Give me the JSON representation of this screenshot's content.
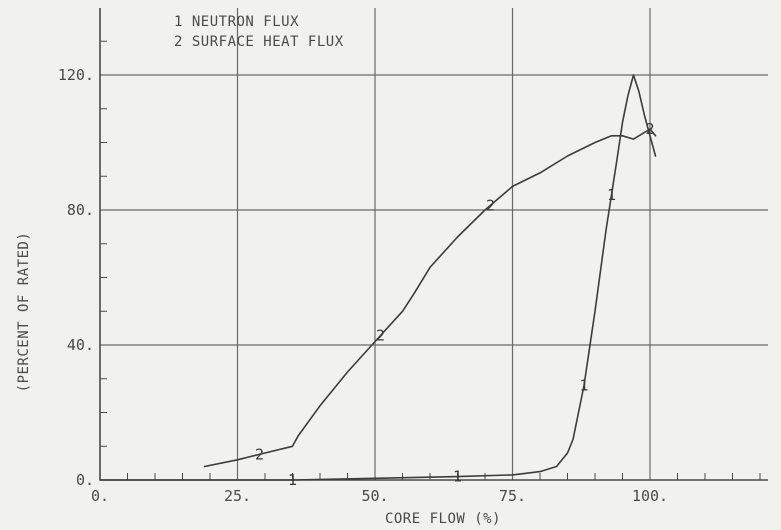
{
  "chart_data": {
    "type": "line",
    "xlabel": "CORE FLOW (%)",
    "ylabel": "(PERCENT OF RATED)",
    "xlim": [
      0,
      125
    ],
    "ylim": [
      0,
      140
    ],
    "xticks": [
      0,
      25,
      50,
      75,
      100
    ],
    "xtick_labels": [
      "0.",
      "25.",
      "50.",
      "75.",
      "100."
    ],
    "yticks": [
      0,
      40,
      80,
      120
    ],
    "ytick_labels": [
      "0.",
      "40.",
      "80.",
      "120."
    ],
    "grid": true,
    "legend": {
      "placement": "top-left",
      "entries": [
        "1 NEUTRON FLUX",
        "2 SURFACE HEAT FLUX"
      ]
    },
    "series": [
      {
        "name": "1 NEUTRON FLUX",
        "marker": "1",
        "x": [
          0,
          20,
          35,
          50,
          65,
          75,
          80,
          83,
          85,
          86,
          88,
          90,
          92,
          94,
          95,
          96,
          97,
          98,
          99,
          100,
          101
        ],
        "y": [
          0,
          0,
          0,
          0.5,
          1,
          1.5,
          2.5,
          4,
          8,
          12,
          28,
          50,
          74,
          95,
          106,
          114,
          120,
          115,
          108,
          102,
          96
        ],
        "markers_at_x": [
          35,
          65,
          88,
          93
        ]
      },
      {
        "name": "2 SURFACE HEAT FLUX",
        "marker": "2",
        "x": [
          19,
          25,
          30,
          35,
          36,
          40,
          45,
          50,
          55,
          57,
          60,
          65,
          70,
          75,
          80,
          85,
          90,
          93,
          95,
          97,
          99,
          100,
          101
        ],
        "y": [
          4,
          6,
          8,
          10,
          13,
          22,
          32,
          41,
          50,
          55,
          63,
          72,
          80,
          87,
          91,
          96,
          100,
          102,
          102,
          101,
          103,
          104,
          102
        ],
        "markers_at_x": [
          29,
          51,
          71,
          100
        ]
      }
    ]
  }
}
